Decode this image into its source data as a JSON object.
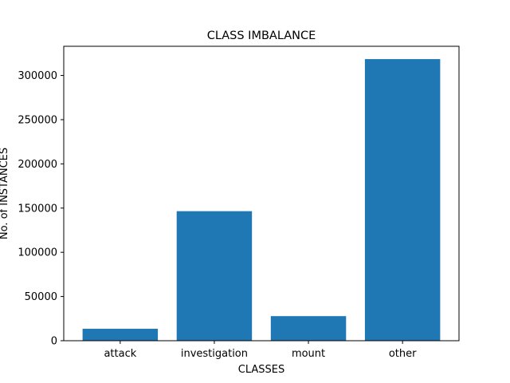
{
  "chart_data": {
    "type": "bar",
    "title": "CLASS IMBALANCE",
    "xlabel": "CLASSES",
    "ylabel": "No. of INSTANCES",
    "categories": [
      "attack",
      "investigation",
      "mount",
      "other"
    ],
    "values": [
      13500,
      146500,
      27800,
      318500
    ],
    "ylim": [
      0,
      333000
    ],
    "yticks": [
      0,
      50000,
      100000,
      150000,
      200000,
      250000,
      300000
    ],
    "ytick_labels": [
      "0",
      "50000",
      "100000",
      "150000",
      "200000",
      "250000",
      "300000"
    ],
    "bar_color": "#1f77b4",
    "grid": false,
    "legend": "none"
  }
}
